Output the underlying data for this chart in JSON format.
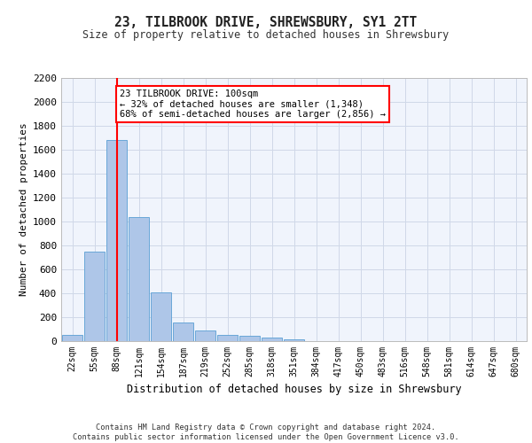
{
  "title": "23, TILBROOK DRIVE, SHREWSBURY, SY1 2TT",
  "subtitle": "Size of property relative to detached houses in Shrewsbury",
  "xlabel": "Distribution of detached houses by size in Shrewsbury",
  "ylabel": "Number of detached properties",
  "footer_line1": "Contains HM Land Registry data © Crown copyright and database right 2024.",
  "footer_line2": "Contains public sector information licensed under the Open Government Licence v3.0.",
  "bin_labels": [
    "22sqm",
    "55sqm",
    "88sqm",
    "121sqm",
    "154sqm",
    "187sqm",
    "219sqm",
    "252sqm",
    "285sqm",
    "318sqm",
    "351sqm",
    "384sqm",
    "417sqm",
    "450sqm",
    "483sqm",
    "516sqm",
    "548sqm",
    "581sqm",
    "614sqm",
    "647sqm",
    "680sqm"
  ],
  "bar_values": [
    52,
    745,
    1680,
    1035,
    405,
    153,
    87,
    50,
    43,
    27,
    18,
    0,
    0,
    0,
    0,
    0,
    0,
    0,
    0,
    0,
    0
  ],
  "bar_color": "#aec6e8",
  "bar_edge_color": "#5a9fd4",
  "red_line_x": 2.0,
  "annotation_text": "23 TILBROOK DRIVE: 100sqm\n← 32% of detached houses are smaller (1,348)\n68% of semi-detached houses are larger (2,856) →",
  "annotation_box_color": "white",
  "annotation_box_edge": "red",
  "ylim": [
    0,
    2200
  ],
  "yticks": [
    0,
    200,
    400,
    600,
    800,
    1000,
    1200,
    1400,
    1600,
    1800,
    2000,
    2200
  ],
  "grid_color": "#d0d8e8",
  "background_color": "#f0f4fc"
}
